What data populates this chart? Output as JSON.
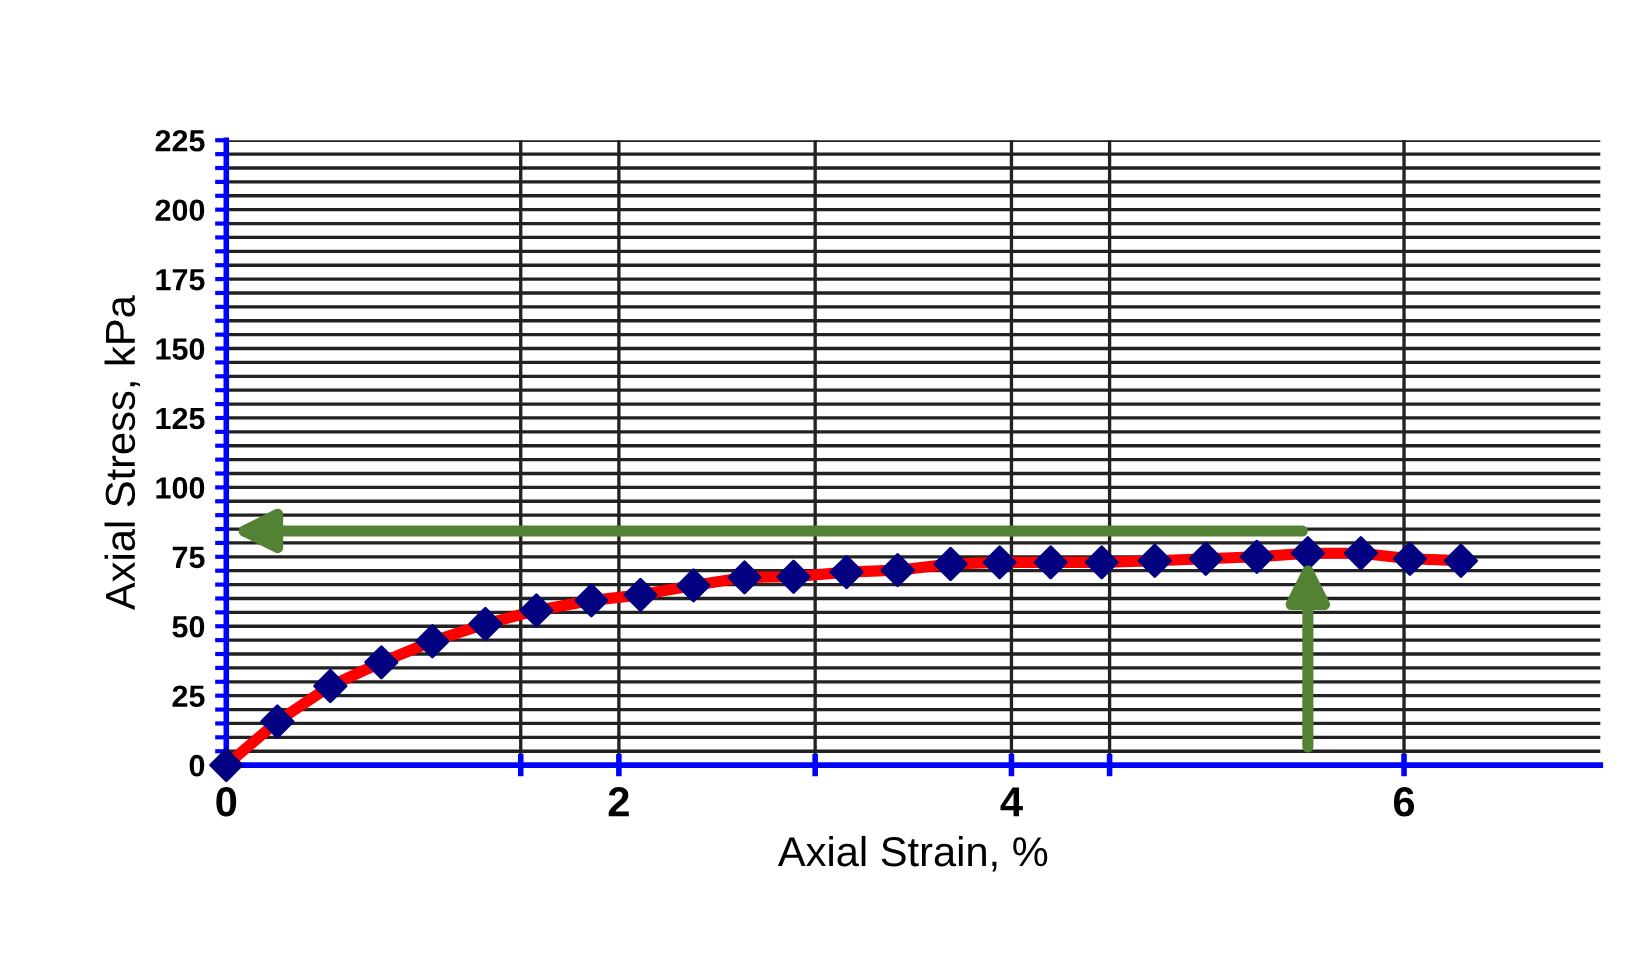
{
  "chart_data": {
    "type": "line",
    "xlabel": "Axial Strain, %",
    "ylabel": "Axial Stress, kPa",
    "x": [
      0,
      0.26,
      0.53,
      0.79,
      1.05,
      1.32,
      1.58,
      1.86,
      2.11,
      2.38,
      2.64,
      2.89,
      3.16,
      3.42,
      3.69,
      3.94,
      4.2,
      4.46,
      4.73,
      4.99,
      5.25,
      5.51,
      5.78,
      6.03,
      6.29
    ],
    "series": [
      {
        "color": "#ff0000",
        "colors": [
          "#000080",
          "#000080",
          "#000080",
          "#000080",
          "#000080",
          "#000080",
          "#000080",
          "#000080",
          "#000080",
          "#000080",
          "#000080",
          "#000080",
          "#000080",
          "#000080",
          "#000080",
          "#000080",
          "#000080",
          "#000080",
          "#000080",
          "#000080",
          "#000080",
          "#000080",
          "#000080",
          "#000080",
          "#000080"
        ],
        "values": [
          0,
          15.7,
          28.5,
          37,
          44.6,
          50.8,
          55.7,
          59.3,
          61.3,
          64.7,
          67.6,
          67.8,
          69.5,
          70.2,
          72.4,
          73,
          73,
          73,
          73.6,
          74.3,
          75,
          76.3,
          76.3,
          74.3,
          73.6
        ]
      }
    ],
    "marker": "diamond",
    "line_style": "solid",
    "xlim": [
      0,
      7
    ],
    "ylim": [
      0,
      225
    ],
    "xticks": [
      0,
      {
        "value": 1.5,
        "label": null
      },
      2,
      {
        "value": 3,
        "label": null
      },
      4,
      {
        "value": 4.5,
        "label": null
      },
      6
    ],
    "yticks": [
      0,
      {
        "value": 5,
        "label": null
      },
      {
        "value": 10,
        "label": null
      },
      {
        "value": 15,
        "label": null
      },
      {
        "value": 20,
        "label": null
      },
      25,
      {
        "value": 30,
        "label": null
      },
      {
        "value": 35,
        "label": null
      },
      {
        "value": 40,
        "label": null
      },
      {
        "value": 45,
        "label": null
      },
      50,
      {
        "value": 55,
        "label": null
      },
      {
        "value": 60,
        "label": null
      },
      {
        "value": 65,
        "label": null
      },
      {
        "value": 70,
        "label": null
      },
      75,
      {
        "value": 80,
        "label": null
      },
      {
        "value": 85,
        "label": null
      },
      {
        "value": 90,
        "label": null
      },
      {
        "value": 95,
        "label": null
      },
      100,
      {
        "value": 105,
        "label": null
      },
      {
        "value": 110,
        "label": null
      },
      {
        "value": 115,
        "label": null
      },
      {
        "value": 120,
        "label": null
      },
      125,
      {
        "value": 130,
        "label": null
      },
      {
        "value": 135,
        "label": null
      },
      {
        "value": 140,
        "label": null
      },
      {
        "value": 145,
        "label": null
      },
      150,
      {
        "value": 155,
        "label": null
      },
      {
        "value": 160,
        "label": null
      },
      {
        "value": 165,
        "label": null
      },
      {
        "value": 170,
        "label": null
      },
      175,
      {
        "value": 180,
        "label": null
      },
      {
        "value": 185,
        "label": null
      },
      {
        "value": 190,
        "label": null
      },
      {
        "value": 195,
        "label": null
      },
      200,
      {
        "value": 205,
        "label": null
      },
      {
        "value": 210,
        "label": null
      },
      {
        "value": 215,
        "label": null
      },
      {
        "value": 220,
        "label": null
      },
      225
    ],
    "grid": true,
    "legend": false
  }
}
